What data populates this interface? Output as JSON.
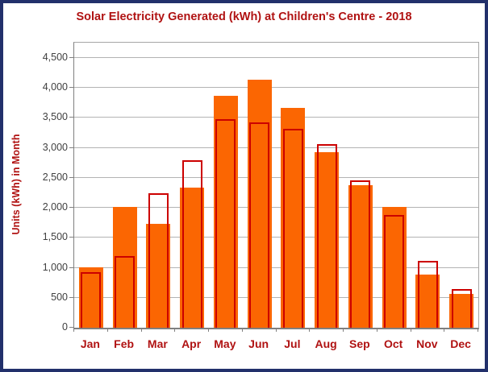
{
  "title": "Solar Electricity Generated (kWh) at Children's Centre - 2018",
  "y_axis_title": "Units (kWh) in Month",
  "colors": {
    "bar_fill_orange": "#fb6602",
    "bar_outline_red": "#cc0000",
    "heading_red": "#b01212",
    "tick_label_gray": "#404040",
    "grid_gray": "#b3b3b3",
    "axis_gray": "#808080",
    "frame_navy": "#22306b"
  },
  "chart_data": {
    "type": "bar",
    "title": "Solar Electricity Generated (kWh) at Children's Centre - 2018",
    "xlabel": "",
    "ylabel": "Units (kWh) in Month",
    "categories": [
      "Jan",
      "Feb",
      "Mar",
      "Apr",
      "May",
      "Jun",
      "Jul",
      "Aug",
      "Sep",
      "Oct",
      "Nov",
      "Dec"
    ],
    "series": [
      {
        "name": "solid-orange-bars",
        "style": "filled",
        "color": "#fb6602",
        "values": [
          1010,
          2020,
          1730,
          2340,
          3870,
          4140,
          3660,
          2920,
          2370,
          2020,
          890,
          570
        ]
      },
      {
        "name": "red-outline-bars",
        "style": "outline",
        "color": "#cc0000",
        "values": [
          920,
          1200,
          2240,
          2790,
          3470,
          3420,
          3310,
          3060,
          2460,
          1880,
          1110,
          640
        ]
      }
    ],
    "ylim": [
      0,
      4750
    ],
    "yticks": [
      0,
      500,
      1000,
      1500,
      2000,
      2500,
      3000,
      3500,
      4000,
      4500
    ],
    "ytick_labels": [
      "0",
      "500",
      "1,000",
      "1,500",
      "2,000",
      "2,500",
      "3,000",
      "3,500",
      "4,000",
      "4,500"
    ],
    "grid": true,
    "legend": "none"
  }
}
